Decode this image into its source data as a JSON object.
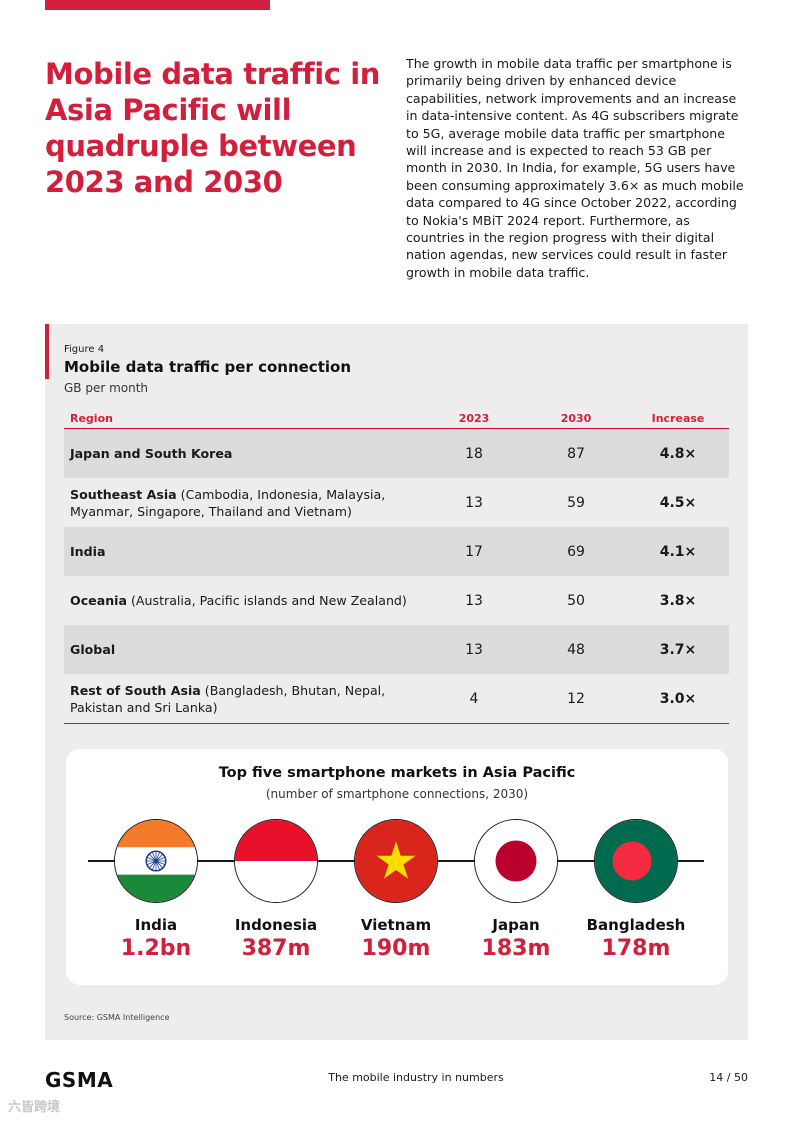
{
  "headline": "Mobile data traffic in Asia Pacific will quadruple between 2023 and 2030",
  "intro": "The growth in mobile data traffic per smartphone is primarily being driven by enhanced device capabilities, network improvements and an increase in data-intensive content. As 4G subscribers migrate to 5G, average mobile data traffic per smartphone will increase and is expected to reach 53 GB per month in 2030. In India, for example, 5G users have been consuming approximately 3.6× as much mobile data compared to 4G since October 2022, according to Nokia's MBiT 2024 report. Furthermore, as countries in the region progress with their digital nation agendas, new services could result in faster growth in mobile data traffic.",
  "figure": {
    "label": "Figure 4",
    "title": "Mobile data traffic per connection",
    "subtitle": "GB per month",
    "source": "Source: GSMA Intelligence"
  },
  "table": {
    "headers": {
      "region": "Region",
      "y2023": "2023",
      "y2030": "2030",
      "increase": "Increase"
    },
    "rows": [
      {
        "name": "Japan and South Korea",
        "detail": "",
        "y2023": "18",
        "y2030": "87",
        "increase": "4.8×"
      },
      {
        "name": "Southeast Asia",
        "detail": " (Cambodia, Indonesia, Malaysia, Myanmar, Singapore, Thailand and Vietnam)",
        "y2023": "13",
        "y2030": "59",
        "increase": "4.5×"
      },
      {
        "name": "India",
        "detail": "",
        "y2023": "17",
        "y2030": "69",
        "increase": "4.1×"
      },
      {
        "name": "Oceania",
        "detail": " (Australia, Pacific islands and New Zealand)",
        "y2023": "13",
        "y2030": "50",
        "increase": "3.8×"
      },
      {
        "name": "Global",
        "detail": "",
        "y2023": "13",
        "y2030": "48",
        "increase": "3.7×"
      },
      {
        "name": "Rest of South Asia",
        "detail": " (Bangladesh, Bhutan, Nepal, Pakistan and Sri Lanka)",
        "y2023": "4",
        "y2030": "12",
        "increase": "3.0×"
      }
    ]
  },
  "markets": {
    "title": "Top five smartphone markets in Asia Pacific",
    "subtitle": "(number of smartphone connections, 2030)",
    "items": [
      {
        "name": "India",
        "value": "1.2bn",
        "flag_icon": "india-flag-icon"
      },
      {
        "name": "Indonesia",
        "value": "387m",
        "flag_icon": "indonesia-flag-icon"
      },
      {
        "name": "Vietnam",
        "value": "190m",
        "flag_icon": "vietnam-flag-icon"
      },
      {
        "name": "Japan",
        "value": "183m",
        "flag_icon": "japan-flag-icon"
      },
      {
        "name": "Bangladesh",
        "value": "178m",
        "flag_icon": "bangladesh-flag-icon"
      }
    ]
  },
  "footer": {
    "logo": "GSMA",
    "center": "The mobile industry in numbers",
    "page": "14 / 50"
  },
  "watermark": "六皆跨境",
  "colors": {
    "accent": "#d21f3c",
    "panel": "#ededed",
    "row_shade": "#dcdcdc"
  }
}
